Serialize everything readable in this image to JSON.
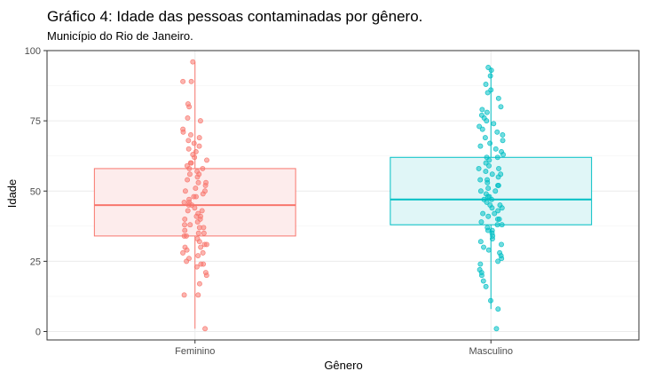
{
  "chart_data": {
    "type": "boxplot-jitter",
    "title": "Gráfico 4: Idade das pessoas contaminadas por gênero.",
    "subtitle": "Município do Rio de Janeiro.",
    "xlabel": "Gênero",
    "ylabel": "Idade",
    "ylim": [
      -3,
      100
    ],
    "yticks": [
      0,
      25,
      50,
      75,
      100
    ],
    "categories": [
      "Feminino",
      "Masculino"
    ],
    "grid": true,
    "legend": "none",
    "series": [
      {
        "name": "Feminino",
        "color": "#F8766D",
        "fill": "#fdecec",
        "box": {
          "min": 1,
          "q1": 34,
          "median": 45,
          "q3": 58,
          "max": 96
        },
        "points": [
          96,
          89,
          89,
          81,
          80,
          76,
          75,
          72,
          71,
          70,
          69,
          68,
          67,
          66,
          65,
          64,
          63,
          62,
          61,
          60,
          60,
          59,
          58,
          58,
          57,
          56,
          56,
          55,
          54,
          53,
          53,
          52,
          51,
          50,
          50,
          49,
          48,
          48,
          47,
          46,
          46,
          45,
          45,
          44,
          43,
          43,
          42,
          41,
          41,
          40,
          40,
          39,
          38,
          38,
          37,
          37,
          36,
          35,
          35,
          34,
          34,
          33,
          32,
          31,
          31,
          30,
          30,
          29,
          28,
          28,
          27,
          26,
          25,
          24,
          24,
          23,
          21,
          20,
          17,
          13,
          13,
          1
        ]
      },
      {
        "name": "Masculino",
        "color": "#00BFC4",
        "fill": "#e0f6f7",
        "box": {
          "min": 8,
          "q1": 38,
          "median": 47,
          "q3": 62,
          "max": 94
        },
        "points": [
          94,
          93,
          91,
          88,
          86,
          85,
          83,
          80,
          79,
          78,
          77,
          76,
          75,
          74,
          73,
          72,
          71,
          70,
          69,
          68,
          67,
          66,
          65,
          64,
          63,
          62,
          62,
          61,
          60,
          59,
          58,
          58,
          57,
          56,
          56,
          55,
          54,
          54,
          53,
          52,
          52,
          51,
          50,
          50,
          49,
          48,
          48,
          47,
          47,
          46,
          45,
          45,
          44,
          44,
          43,
          42,
          42,
          41,
          40,
          40,
          39,
          38,
          38,
          37,
          36,
          36,
          35,
          34,
          33,
          32,
          31,
          30,
          29,
          28,
          27,
          26,
          25,
          24,
          22,
          21,
          20,
          18,
          16,
          11,
          8,
          1
        ]
      }
    ]
  }
}
